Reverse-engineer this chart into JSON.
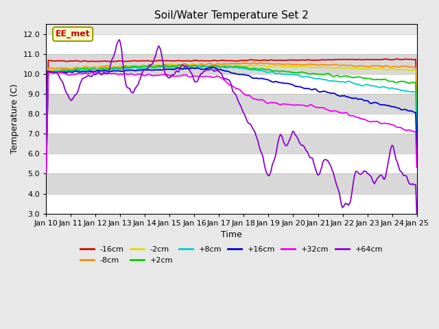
{
  "title": "Soil/Water Temperature Set 2",
  "xlabel": "Time",
  "ylabel": "Temperature (C)",
  "ylim": [
    3.0,
    12.5
  ],
  "yticks": [
    3.0,
    4.0,
    5.0,
    6.0,
    7.0,
    8.0,
    9.0,
    10.0,
    11.0,
    12.0
  ],
  "annotation": "EE_met",
  "annotation_color": "#cc0000",
  "annotation_bg": "#ffffcc",
  "annotation_border": "#999900",
  "series": [
    {
      "label": "-16cm",
      "color": "#dd0000"
    },
    {
      "label": "-8cm",
      "color": "#ff8800"
    },
    {
      "label": "-2cm",
      "color": "#dddd00"
    },
    {
      "label": "+2cm",
      "color": "#00cc00"
    },
    {
      "label": "+8cm",
      "color": "#00cccc"
    },
    {
      "label": "+16cm",
      "color": "#0000cc"
    },
    {
      "label": "+32cm",
      "color": "#ee00ee"
    },
    {
      "label": "+64cm",
      "color": "#8800cc"
    }
  ],
  "legend_ncol1": 6,
  "legend_ncol2": 2
}
